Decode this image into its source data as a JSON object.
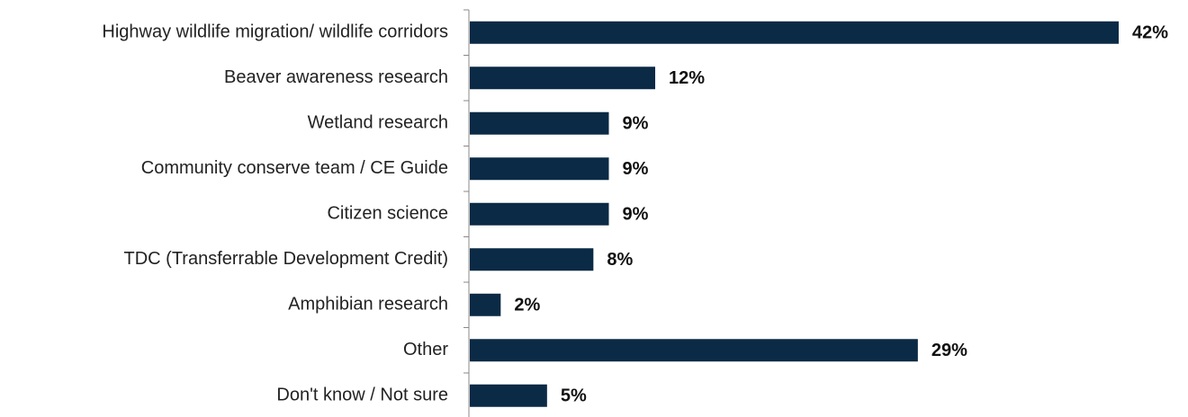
{
  "chart_data": {
    "type": "hbar",
    "categories": [
      "Highway wildlife migration/ wildlife corridors",
      "Beaver awareness research",
      "Wetland research",
      "Community conserve team / CE Guide",
      "Citizen science",
      "TDC (Transferrable Development Credit)",
      "Amphibian research",
      "Other",
      "Don't know / Not sure"
    ],
    "values": [
      42,
      12,
      9,
      9,
      9,
      8,
      2,
      29,
      5
    ],
    "value_labels": [
      "42%",
      "12%",
      "9%",
      "9%",
      "9%",
      "8%",
      "2%",
      "29%",
      "5%"
    ],
    "color": "#0b2a45"
  }
}
